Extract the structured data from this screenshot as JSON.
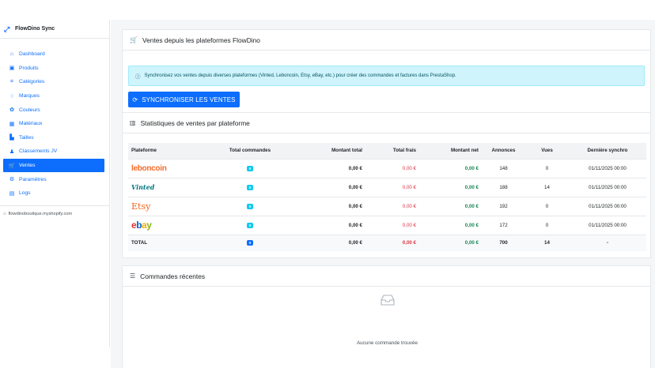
{
  "sidebar": {
    "brand": "FlowDino Sync",
    "items": [
      {
        "label": "Dashboard",
        "icon": "dashboard-icon",
        "glyph": "⌂"
      },
      {
        "label": "Produits",
        "icon": "box-icon",
        "glyph": "▣"
      },
      {
        "label": "Catégories",
        "icon": "tag-icon",
        "glyph": "⌗"
      },
      {
        "label": "Marques",
        "icon": "award-icon",
        "glyph": "♢"
      },
      {
        "label": "Couleurs",
        "icon": "palette-icon",
        "glyph": "✿"
      },
      {
        "label": "Matériaux",
        "icon": "grid-icon",
        "glyph": "▦"
      },
      {
        "label": "Tailles",
        "icon": "ruler-icon",
        "glyph": "▙"
      },
      {
        "label": "Classements JV",
        "icon": "people-icon",
        "glyph": "♟"
      },
      {
        "label": "Ventes",
        "icon": "cart-icon",
        "glyph": "🛒",
        "active": true
      },
      {
        "label": "Paramètres",
        "icon": "gear-icon",
        "glyph": "⚙"
      },
      {
        "label": "Logs",
        "icon": "list-icon",
        "glyph": "▤"
      }
    ],
    "shop": "flowdinoboutique.myshopify.com"
  },
  "sales_card": {
    "title": "Ventes depuis les plateformes FlowDino",
    "alert": "Synchronisez vos ventes depuis diverses plateformes (Vinted, Leboncoin, Etsy, eBay, etc.) pour créer des commandes et factures dans PrestaShop.",
    "sync_button": "SYNCHRONISER LES VENTES"
  },
  "stats_card": {
    "title": "Statistiques de ventes par plateforme",
    "columns": [
      "Plateforme",
      "Total commandes",
      "Montant total",
      "Total frais",
      "Montant net",
      "Annonces",
      "Vues",
      "Dernière synchro"
    ],
    "rows": [
      {
        "platform": "leboncoin",
        "orders": "0",
        "amount": "0,00 €",
        "fees": "0,00 €",
        "net": "0,00 €",
        "listings": "148",
        "views": "0",
        "last_sync": "01/11/2025 00:00"
      },
      {
        "platform": "Vinted",
        "orders": "0",
        "amount": "0,00 €",
        "fees": "0,00 €",
        "net": "0,00 €",
        "listings": "188",
        "views": "14",
        "last_sync": "01/11/2025 00:00"
      },
      {
        "platform": "Etsy",
        "orders": "0",
        "amount": "0,00 €",
        "fees": "0,00 €",
        "net": "0,00 €",
        "listings": "192",
        "views": "0",
        "last_sync": "01/11/2025 00:00"
      },
      {
        "platform": "ebay",
        "orders": "0",
        "amount": "0,00 €",
        "fees": "0,00 €",
        "net": "0,00 €",
        "listings": "172",
        "views": "0",
        "last_sync": "01/11/2025 00:00"
      }
    ],
    "total": {
      "label": "TOTAL",
      "orders": "0",
      "amount": "0,00 €",
      "fees": "0,00 €",
      "net": "0,00 €",
      "listings": "700",
      "views": "14",
      "last_sync": "-"
    }
  },
  "orders_card": {
    "title": "Commandes récentes",
    "empty": "Aucune commande trouvée"
  },
  "colors": {
    "accent": "#0d6efd",
    "fees": "#dc3545",
    "net": "#198754",
    "badge": "#0dcaf0"
  }
}
